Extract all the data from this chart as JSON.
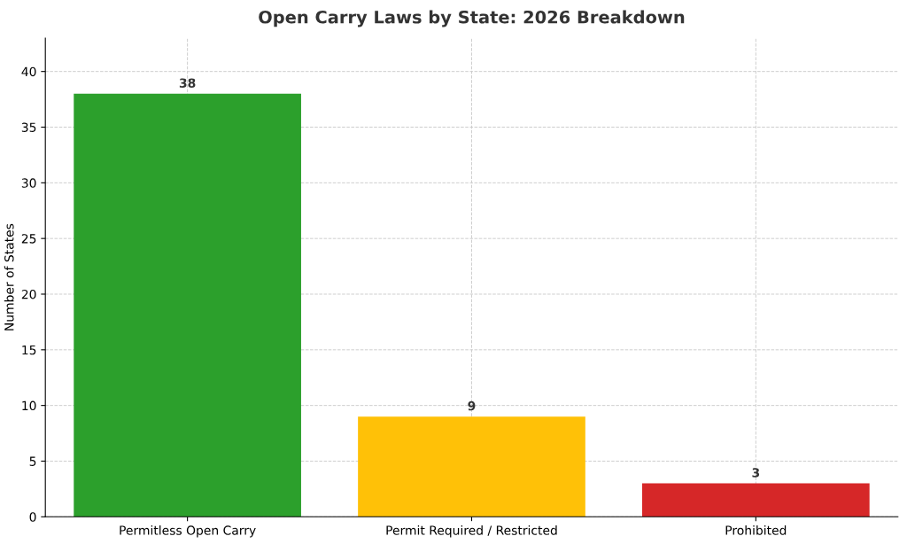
{
  "chart_data": {
    "type": "bar",
    "title": "Open Carry Laws by State: 2026 Breakdown",
    "ylabel": "Number of States",
    "categories": [
      "Permitless Open Carry",
      "Permit Required / Restricted",
      "Prohibited"
    ],
    "values": [
      38,
      9,
      3
    ],
    "colors": [
      "#2ca02c",
      "#ffc107",
      "#d62728"
    ],
    "ylim": [
      0,
      43
    ],
    "yticks": [
      0,
      5,
      10,
      15,
      20,
      25,
      30,
      35,
      40
    ],
    "grid": true,
    "data_labels": true
  }
}
